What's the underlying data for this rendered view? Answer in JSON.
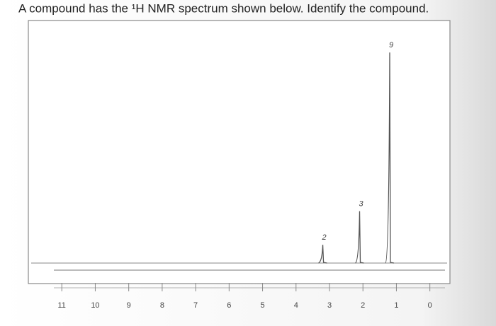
{
  "chart_data": {
    "type": "nmr",
    "title": "A compound has the ¹H NMR spectrum shown below. Identify the compound.",
    "x": [
      3.2,
      2.1,
      1.2
    ],
    "values": [
      7,
      21,
      87
    ],
    "integrations": [
      2,
      3,
      9
    ],
    "color": "#555555",
    "xlim": [
      12,
      -0.6
    ],
    "ylim": [
      0,
      100
    ],
    "xticks": [
      11,
      10,
      9,
      8,
      7,
      6,
      5,
      4,
      3,
      2,
      1,
      0
    ]
  }
}
